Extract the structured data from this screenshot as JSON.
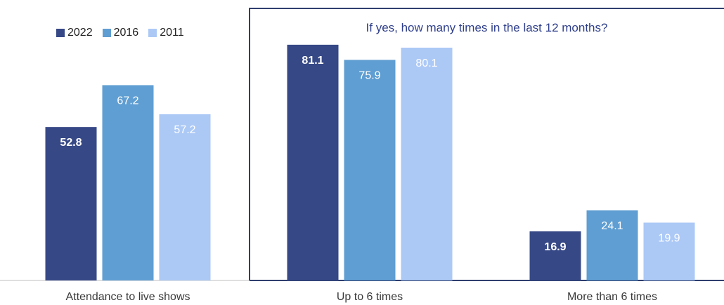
{
  "chart_data": {
    "type": "bar",
    "subtitle": "If yes, how many times in the last 12 months?",
    "categories": [
      "Attendance to live shows",
      "Up to 6 times",
      "More than 6 times"
    ],
    "series": [
      {
        "name": "2022",
        "values": [
          52.8,
          81.1,
          16.9
        ],
        "color": "#364886"
      },
      {
        "name": "2016",
        "values": [
          67.2,
          75.9,
          24.1
        ],
        "color": "#5f9ed2"
      },
      {
        "name": "2011",
        "values": [
          57.2,
          80.1,
          19.9
        ],
        "color": "#acc9f6"
      }
    ],
    "ylim": [
      0,
      85
    ],
    "grid": false,
    "legend": "top-left",
    "bold_series": "2022"
  }
}
